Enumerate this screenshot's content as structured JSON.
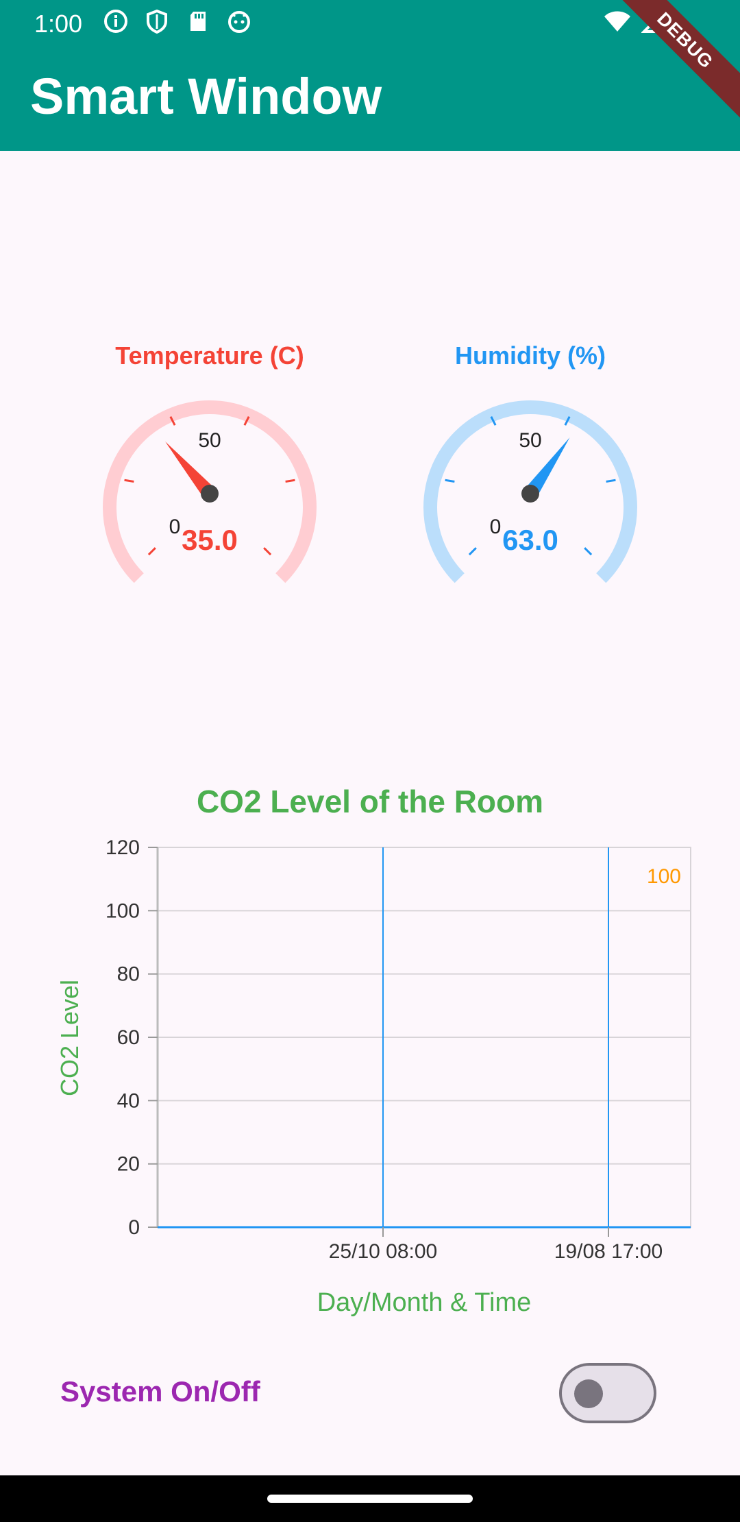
{
  "status_bar": {
    "time": "1:00",
    "left_icons": [
      "info-icon",
      "shield-icon",
      "sd-card-icon",
      "android-icon"
    ],
    "right_icons": [
      "wifi-icon",
      "signal-icon"
    ]
  },
  "app_bar": {
    "title": "Smart Window",
    "debug_banner": "DEBUG",
    "color": "#009688"
  },
  "gauges": [
    {
      "id": "temperature",
      "title": "Temperature (C)",
      "value": 35.0,
      "value_text": "35.0",
      "min_label": "0",
      "mid_label": "50",
      "color": "#f44336",
      "track_color": "#ffcdd2"
    },
    {
      "id": "humidity",
      "title": "Humidity (%)",
      "value": 63.0,
      "value_text": "63.0",
      "min_label": "0",
      "mid_label": "50",
      "color": "#2196f3",
      "track_color": "#bbdefb"
    }
  ],
  "chart_data": {
    "type": "line",
    "title": "CO2 Level of the Room",
    "xlabel": "Day/Month & Time",
    "ylabel": "CO2 Level",
    "ylim": [
      0,
      120
    ],
    "y_ticks": [
      "0",
      "20",
      "40",
      "60",
      "80",
      "100",
      "120"
    ],
    "x_ticks": [
      "25/10 08:00",
      "19/08 17:00"
    ],
    "annotation": "100",
    "grid": true,
    "title_color": "#4caf50",
    "line_color": "#2196f3",
    "annotation_color": "#ff9800"
  },
  "system": {
    "label": "System On/Off",
    "toggle_on": false
  }
}
